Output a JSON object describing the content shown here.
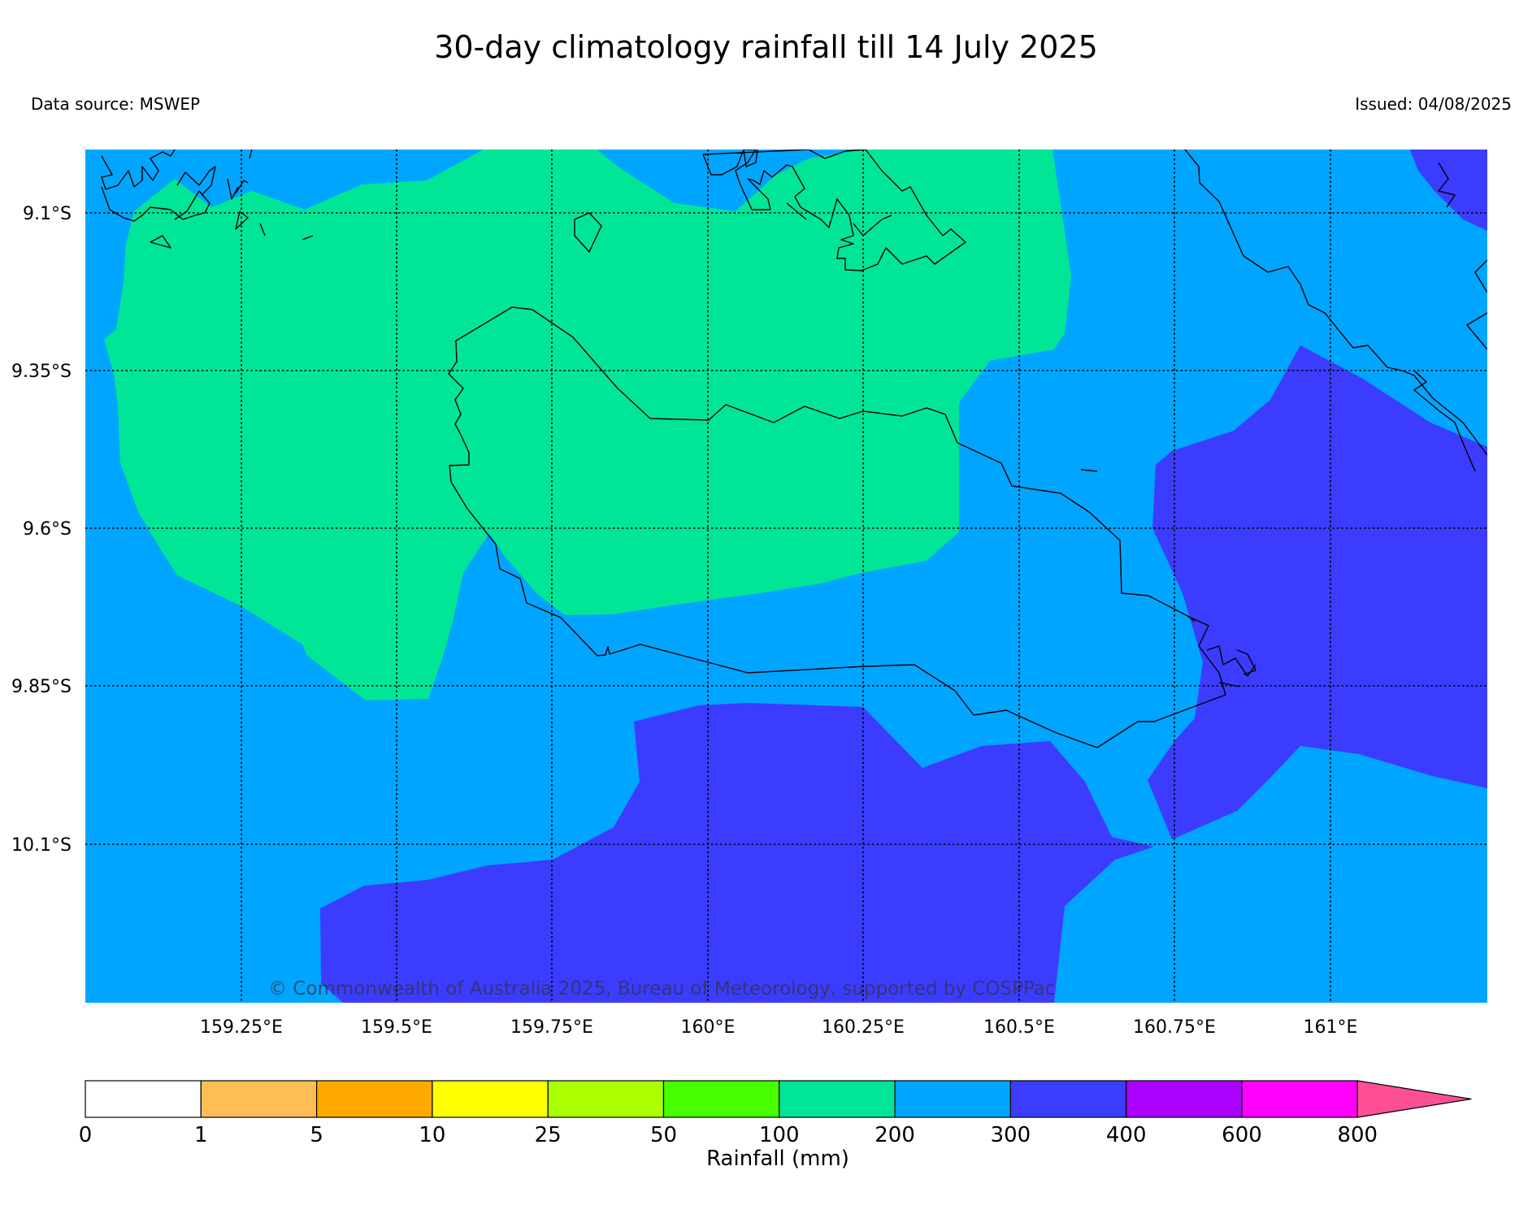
{
  "header": {
    "title": "30-day climatology rainfall till 14 July 2025",
    "data_source": "Data source: MSWEP",
    "issued": "Issued: 04/08/2025"
  },
  "map": {
    "lon_range": [
      159.0,
      161.25
    ],
    "lat_range": [
      -10.35,
      -9.0
    ],
    "lat_ticks": [
      {
        "value": -9.1,
        "label": "9.1°S"
      },
      {
        "value": -9.35,
        "label": "9.35°S"
      },
      {
        "value": -9.6,
        "label": "9.6°S"
      },
      {
        "value": -9.85,
        "label": "9.85°S"
      },
      {
        "value": -10.1,
        "label": "10.1°S"
      }
    ],
    "lon_ticks": [
      {
        "value": 159.25,
        "label": "159.25°E"
      },
      {
        "value": 159.5,
        "label": "159.5°E"
      },
      {
        "value": 159.75,
        "label": "159.75°E"
      },
      {
        "value": 160.0,
        "label": "160°E"
      },
      {
        "value": 160.25,
        "label": "160.25°E"
      },
      {
        "value": 160.5,
        "label": "160.5°E"
      },
      {
        "value": 160.75,
        "label": "160.75°E"
      },
      {
        "value": 161.0,
        "label": "161°E"
      }
    ],
    "gridlines": "dotted",
    "copyright": "© Commonwealth of Australia 2025, Bureau of Meteorology, supported by COSPPac",
    "colors": {
      "band_100_200": "#00e696",
      "band_200_300": "#00a5ff",
      "band_300_400": "#3c3cff",
      "coast": "#000000"
    }
  },
  "colorbar": {
    "label": "Rainfall (mm)",
    "ticks": [
      "0",
      "1",
      "5",
      "10",
      "25",
      "50",
      "100",
      "200",
      "300",
      "400",
      "600",
      "800"
    ],
    "colors": [
      "#ffffff",
      "#ffbe55",
      "#ffaa00",
      "#ffff00",
      "#aaff00",
      "#46ff00",
      "#00e696",
      "#00a5ff",
      "#3c3cff",
      "#aa00ff",
      "#ff00ff",
      "#ff5096"
    ]
  }
}
